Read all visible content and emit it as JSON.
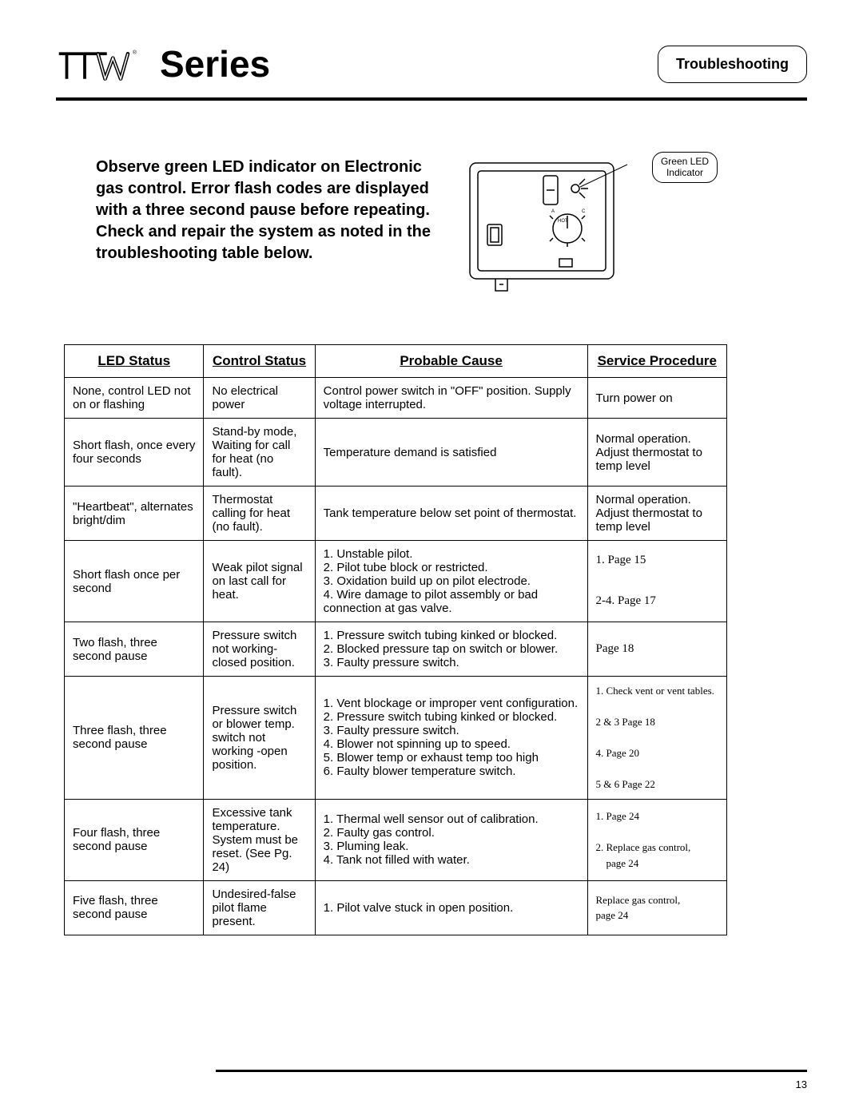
{
  "header": {
    "series_label": "Series",
    "badge": "Troubleshooting"
  },
  "intro": "Observe green LED indicator on Electronic gas control. Error flash codes are displayed with a three second pause before repeating. Check and repair the system as noted in the troubleshooting table below.",
  "led_callout_line1": "Green LED",
  "led_callout_line2": "Indicator",
  "table": {
    "columns": [
      "LED Status",
      "Control Status",
      "Probable Cause",
      "Service Procedure"
    ],
    "rows": [
      {
        "led": "None, control LED not on or flashing",
        "ctrl": "No electrical power",
        "cause": "Control power switch in \"OFF\" position. Supply voltage interrupted.",
        "svc": "Turn power on",
        "svc_center": true
      },
      {
        "led": "Short flash, once every four seconds",
        "ctrl": "Stand-by mode, Waiting for call for heat (no fault).",
        "cause": "Temperature demand is satisfied",
        "svc": "Normal operation. Adjust thermostat to temp level",
        "svc_center": true
      },
      {
        "led": "\"Heartbeat\", alternates bright/dim",
        "ctrl": "Thermostat calling for heat (no fault).",
        "cause": "Tank temperature below set point of thermostat.",
        "svc": "Normal operation. Adjust thermostat to temp level",
        "svc_center": true
      },
      {
        "led": "Short flash once per second",
        "ctrl": "Weak pilot signal on last call for heat.",
        "cause_list": [
          "1. Unstable pilot.",
          "2. Pilot tube block or restricted.",
          "3. Oxidation build up on pilot electrode.",
          "4. Wire damage to pilot assembly or bad connection at gas valve."
        ],
        "svc_lines": [
          "1. Page 15",
          "",
          "2-4. Page 17"
        ],
        "svc_class": "svc-med"
      },
      {
        "led": "Two flash, three second pause",
        "ctrl": "Pressure switch not working-closed position.",
        "cause_list": [
          "1. Pressure switch tubing kinked or blocked.",
          "2. Blocked pressure tap on switch or blower.",
          "3. Faulty pressure switch."
        ],
        "svc": "Page 18",
        "svc_class": "svc-med"
      },
      {
        "led": "Three flash, three second pause",
        "ctrl": "Pressure switch or blower temp. switch not working -open position.",
        "cause_list": [
          "1. Vent blockage or improper vent configuration.",
          "2. Pressure switch tubing kinked or blocked.",
          "3. Faulty pressure switch.",
          "4. Blower not spinning up to speed.",
          "5. Blower temp or exhaust temp too high",
          "6. Faulty blower temperature switch."
        ],
        "svc_lines": [
          "1. Check vent or vent tables.",
          "",
          "2 & 3 Page 18",
          "",
          "4. Page 20",
          "",
          "5 & 6  Page 22"
        ],
        "svc_class": "svc-small"
      },
      {
        "led": "Four flash, three second pause",
        "ctrl": "Excessive tank temperature. System must be reset. (See Pg. 24)",
        "cause_list": [
          "1. Thermal well sensor out of calibration.",
          "2. Faulty gas control.",
          "3. Pluming leak.",
          "4. Tank not filled with water."
        ],
        "svc_lines": [
          "1. Page 24",
          "",
          "2. Replace gas control,",
          "    page 24"
        ],
        "svc_class": "svc-small"
      },
      {
        "led": "Five flash, three second pause",
        "ctrl": "Undesired-false pilot flame present.",
        "cause": "1. Pilot valve stuck in open position.",
        "svc_lines": [
          "Replace gas control,",
          "page 24"
        ],
        "svc_class": "svc-small"
      }
    ]
  },
  "page_number": "13",
  "colors": {
    "text": "#000000",
    "bg": "#ffffff",
    "rule": "#000000"
  }
}
